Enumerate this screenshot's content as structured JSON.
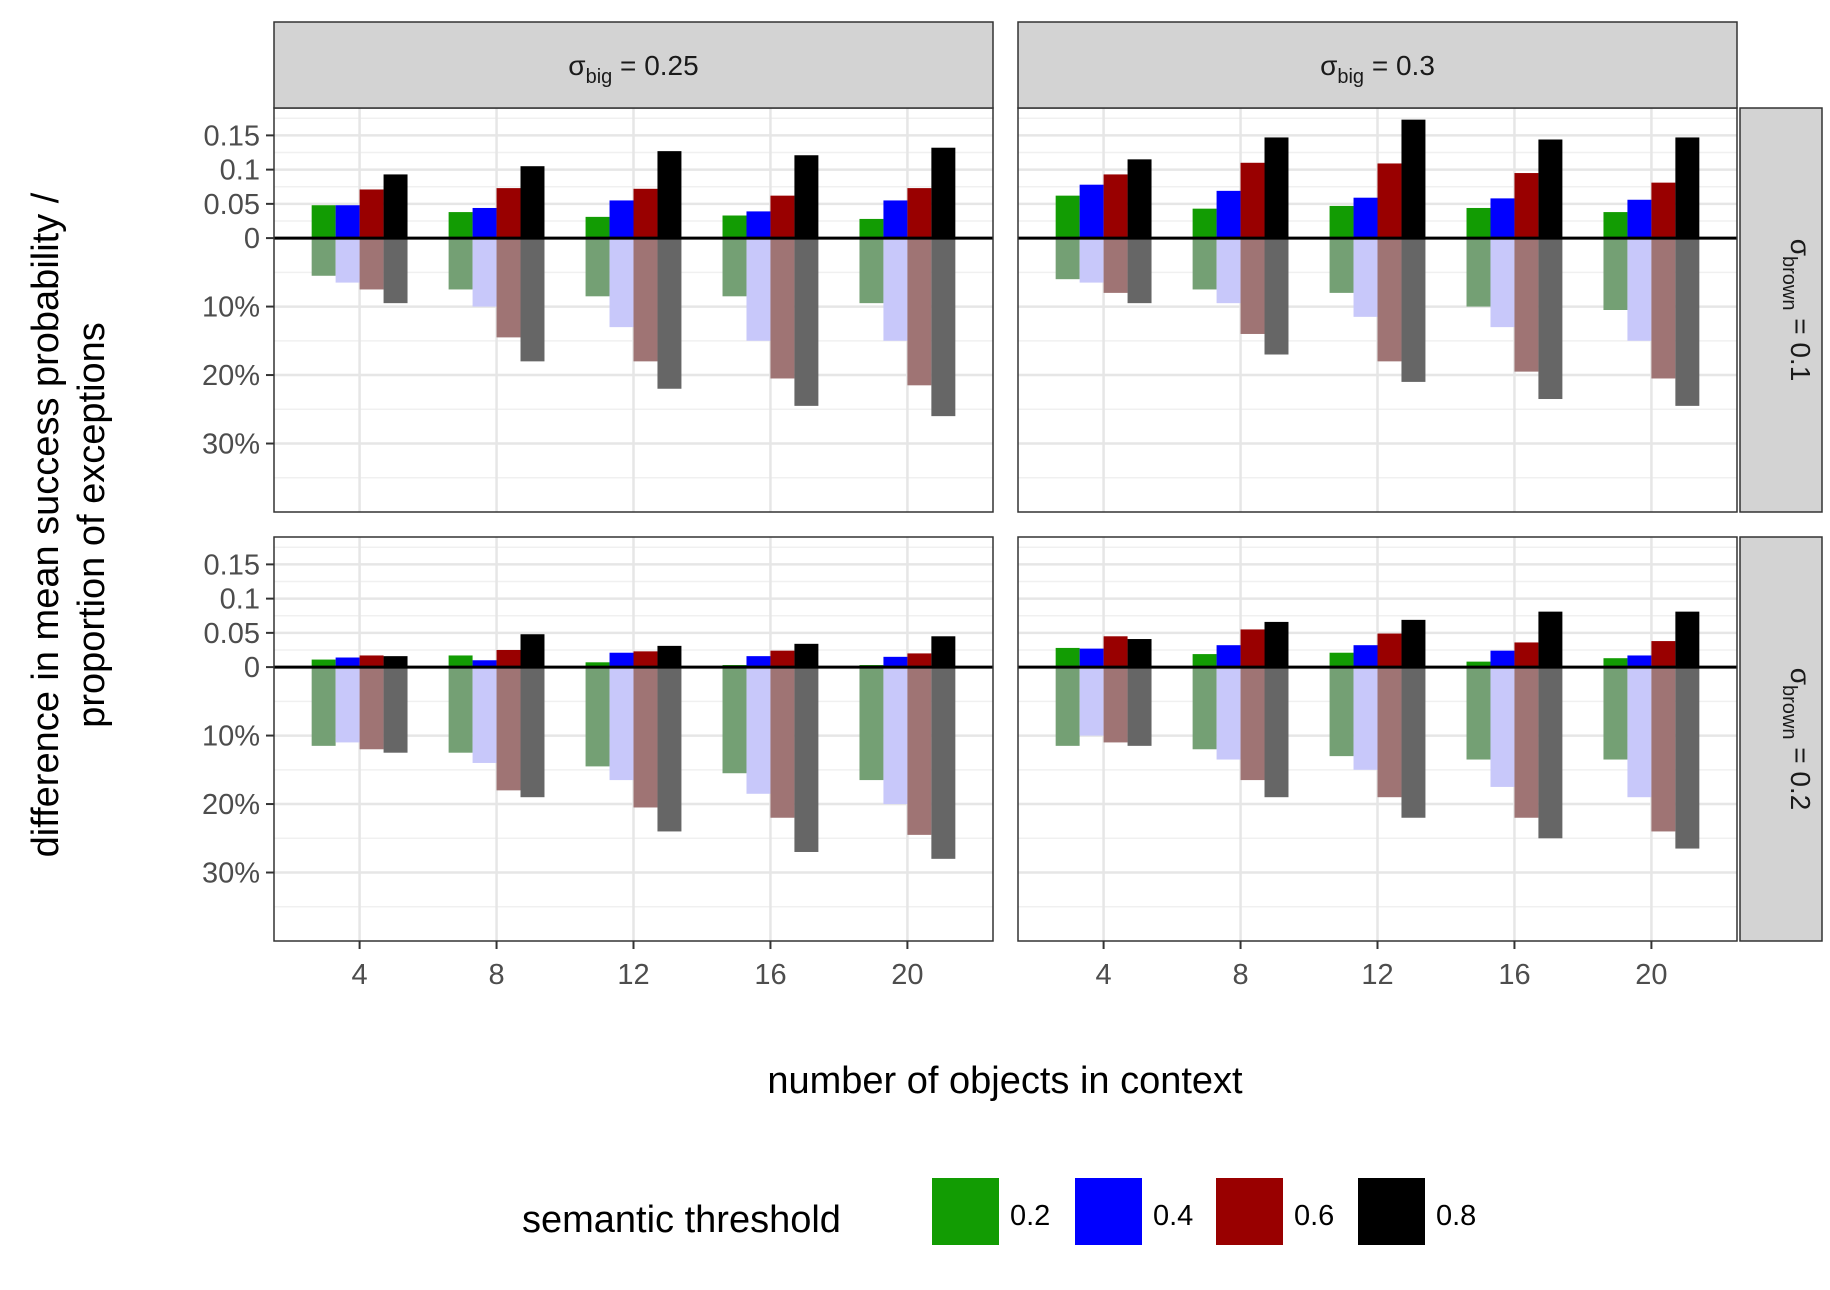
{
  "chart_data": {
    "type": "bar",
    "xlabel": "number of objects in context",
    "ylabel": [
      "difference in mean success probability  /",
      "proportion of exceptions"
    ],
    "categories": [
      4,
      8,
      12,
      16,
      20
    ],
    "y_ticks_positive": [
      "0.15",
      "0.1",
      "0.05",
      "0"
    ],
    "y_ticks_negative": [
      "10%",
      "20%",
      "30%"
    ],
    "ylim": [
      -0.4,
      0.19
    ],
    "legend": {
      "title": "semantic threshold",
      "placement": "bottom",
      "entries": [
        {
          "label": "0.2",
          "color": "#129c03"
        },
        {
          "label": "0.4",
          "color": "#0000ff"
        },
        {
          "label": "0.6",
          "color": "#990000"
        },
        {
          "label": "0.8",
          "color": "#000000"
        }
      ]
    },
    "exception_colors": [
      "#74a074",
      "#c8c8fa",
      "#9f7474",
      "#666666"
    ],
    "column_facets": [
      {
        "symbol": "σ",
        "sub": "big",
        "text": " = 0.25"
      },
      {
        "symbol": "σ",
        "sub": "big",
        "text": " = 0.3"
      }
    ],
    "row_facets": [
      {
        "symbol": "σ",
        "sub": "brown",
        "text": " = 0.1"
      },
      {
        "symbol": "σ",
        "sub": "brown",
        "text": " = 0.2"
      }
    ],
    "panels": [
      {
        "row": 0,
        "col": 0,
        "series": [
          {
            "threshold": "0.2",
            "values": [
              0.048,
              0.038,
              0.031,
              0.033,
              0.028
            ],
            "exceptions": [
              0.055,
              0.075,
              0.085,
              0.085,
              0.095
            ]
          },
          {
            "threshold": "0.4",
            "values": [
              0.048,
              0.044,
              0.055,
              0.039,
              0.055
            ],
            "exceptions": [
              0.065,
              0.1,
              0.13,
              0.15,
              0.15
            ]
          },
          {
            "threshold": "0.6",
            "values": [
              0.071,
              0.073,
              0.072,
              0.062,
              0.073
            ],
            "exceptions": [
              0.075,
              0.145,
              0.18,
              0.205,
              0.215
            ]
          },
          {
            "threshold": "0.8",
            "values": [
              0.093,
              0.105,
              0.127,
              0.121,
              0.132
            ],
            "exceptions": [
              0.095,
              0.18,
              0.22,
              0.245,
              0.26
            ]
          }
        ]
      },
      {
        "row": 0,
        "col": 1,
        "series": [
          {
            "threshold": "0.2",
            "values": [
              0.062,
              0.043,
              0.047,
              0.044,
              0.038
            ],
            "exceptions": [
              0.06,
              0.075,
              0.08,
              0.1,
              0.105
            ]
          },
          {
            "threshold": "0.4",
            "values": [
              0.078,
              0.069,
              0.059,
              0.058,
              0.056
            ],
            "exceptions": [
              0.065,
              0.095,
              0.115,
              0.13,
              0.15
            ]
          },
          {
            "threshold": "0.6",
            "values": [
              0.093,
              0.11,
              0.109,
              0.095,
              0.081
            ],
            "exceptions": [
              0.08,
              0.14,
              0.18,
              0.195,
              0.205
            ]
          },
          {
            "threshold": "0.8",
            "values": [
              0.115,
              0.147,
              0.173,
              0.144,
              0.147
            ],
            "exceptions": [
              0.095,
              0.17,
              0.21,
              0.235,
              0.245
            ]
          }
        ]
      },
      {
        "row": 1,
        "col": 0,
        "series": [
          {
            "threshold": "0.2",
            "values": [
              0.011,
              0.017,
              0.007,
              0.003,
              0.003
            ],
            "exceptions": [
              0.115,
              0.125,
              0.145,
              0.155,
              0.165
            ]
          },
          {
            "threshold": "0.4",
            "values": [
              0.014,
              0.01,
              0.021,
              0.016,
              0.015
            ],
            "exceptions": [
              0.11,
              0.14,
              0.165,
              0.185,
              0.2
            ]
          },
          {
            "threshold": "0.6",
            "values": [
              0.017,
              0.025,
              0.023,
              0.024,
              0.02
            ],
            "exceptions": [
              0.12,
              0.18,
              0.205,
              0.22,
              0.245
            ]
          },
          {
            "threshold": "0.8",
            "values": [
              0.016,
              0.048,
              0.031,
              0.034,
              0.045
            ],
            "exceptions": [
              0.125,
              0.19,
              0.24,
              0.27,
              0.28
            ]
          }
        ]
      },
      {
        "row": 1,
        "col": 1,
        "series": [
          {
            "threshold": "0.2",
            "values": [
              0.028,
              0.019,
              0.021,
              0.008,
              0.013
            ],
            "exceptions": [
              0.115,
              0.12,
              0.13,
              0.135,
              0.135
            ]
          },
          {
            "threshold": "0.4",
            "values": [
              0.027,
              0.032,
              0.032,
              0.024,
              0.017
            ],
            "exceptions": [
              0.1,
              0.135,
              0.15,
              0.175,
              0.19
            ]
          },
          {
            "threshold": "0.6",
            "values": [
              0.045,
              0.055,
              0.049,
              0.036,
              0.038
            ],
            "exceptions": [
              0.11,
              0.165,
              0.19,
              0.22,
              0.24
            ]
          },
          {
            "threshold": "0.8",
            "values": [
              0.041,
              0.066,
              0.069,
              0.081,
              0.081
            ],
            "exceptions": [
              0.115,
              0.19,
              0.22,
              0.25,
              0.265
            ]
          }
        ]
      }
    ]
  }
}
